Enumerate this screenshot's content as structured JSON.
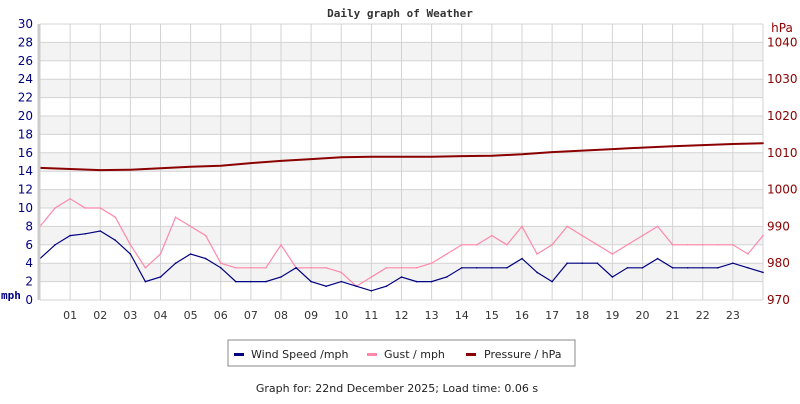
{
  "chart_data": {
    "type": "line",
    "title": "Daily graph of Weather",
    "ylabel_left": "mph",
    "ylabel_right": "hPa",
    "ylim_left": [
      0,
      30
    ],
    "ylim_right": [
      970,
      1045
    ],
    "yticks_left": [
      "0",
      "2",
      "4",
      "6",
      "8",
      "10",
      "12",
      "14",
      "16",
      "18",
      "20",
      "22",
      "24",
      "26",
      "28",
      "30"
    ],
    "yticks_right": [
      "970",
      "980",
      "990",
      "1000",
      "1010",
      "1020",
      "1030",
      "1040"
    ],
    "xticks": [
      "01",
      "02",
      "03",
      "04",
      "05",
      "06",
      "07",
      "08",
      "09",
      "10",
      "11",
      "12",
      "13",
      "14",
      "15",
      "16",
      "17",
      "18",
      "19",
      "20",
      "21",
      "22",
      "23"
    ],
    "xlim_hours": [
      0,
      24
    ],
    "grid": true,
    "legend_placement": "bottom",
    "series": [
      {
        "name": "Wind Speed /mph",
        "color": "#000080",
        "axis": "left",
        "x": [
          0,
          0.5,
          1,
          1.5,
          2,
          2.5,
          3,
          3.5,
          4,
          4.5,
          5,
          5.5,
          6,
          6.5,
          7,
          7.5,
          8,
          8.5,
          9,
          9.5,
          10,
          10.5,
          11,
          11.5,
          12,
          12.5,
          13,
          13.5,
          14,
          14.5,
          15,
          15.5,
          16,
          16.5,
          17,
          17.5,
          18,
          18.5,
          19,
          19.5,
          20,
          20.5,
          21,
          21.5,
          22,
          22.5,
          23,
          23.5,
          24
        ],
        "values": [
          4.5,
          6,
          7,
          7.2,
          7.5,
          6.5,
          5,
          2,
          2.5,
          4,
          5,
          4.5,
          3.5,
          2,
          2,
          2,
          2.5,
          3.5,
          2,
          1.5,
          2,
          1.5,
          1,
          1.5,
          2.5,
          2,
          2,
          2.5,
          3.5,
          3.5,
          3.5,
          3.5,
          4.5,
          3,
          2,
          4,
          4,
          4,
          2.5,
          3.5,
          3.5,
          4.5,
          3.5,
          3.5,
          3.5,
          3.5,
          4,
          3.5,
          3
        ]
      },
      {
        "name": "Gust / mph",
        "color": "#ff88aa",
        "axis": "left",
        "x": [
          0,
          0.5,
          1,
          1.5,
          2,
          2.5,
          3,
          3.5,
          4,
          4.5,
          5,
          5.5,
          6,
          6.5,
          7,
          7.5,
          8,
          8.5,
          9,
          9.5,
          10,
          10.5,
          11,
          11.5,
          12,
          12.5,
          13,
          13.5,
          14,
          14.5,
          15,
          15.5,
          16,
          16.5,
          17,
          17.5,
          18,
          18.5,
          19,
          19.5,
          20,
          20.5,
          21,
          21.5,
          22,
          22.5,
          23,
          23.5,
          24
        ],
        "values": [
          8,
          10,
          11,
          10,
          10,
          9,
          6,
          3.5,
          5,
          9,
          8,
          7,
          4,
          3.5,
          3.5,
          3.5,
          6,
          3.5,
          3.5,
          3.5,
          3,
          1.5,
          2.5,
          3.5,
          3.5,
          3.5,
          4,
          5,
          6,
          6,
          7,
          6,
          8,
          5,
          6,
          8,
          7,
          6,
          5,
          6,
          7,
          8,
          6,
          6,
          6,
          6,
          6,
          5,
          7
        ]
      },
      {
        "name": "Pressure / hPa",
        "color": "#8b0000",
        "axis": "right",
        "x": [
          0,
          1,
          2,
          3,
          4,
          5,
          6,
          7,
          8,
          9,
          10,
          11,
          12,
          13,
          14,
          15,
          16,
          17,
          18,
          19,
          20,
          21,
          22,
          23,
          24
        ],
        "values": [
          1005.9,
          1005.6,
          1005.3,
          1005.4,
          1005.8,
          1006.2,
          1006.5,
          1007.2,
          1007.8,
          1008.3,
          1008.8,
          1008.9,
          1008.9,
          1008.9,
          1009.1,
          1009.2,
          1009.6,
          1010.2,
          1010.6,
          1011.0,
          1011.4,
          1011.8,
          1012.1,
          1012.4,
          1012.6
        ]
      }
    ]
  },
  "footer": "Graph for: 22nd December 2025; Load time: 0.06 s",
  "colors": {
    "left_axis": "#000080",
    "right_axis": "#8b0000",
    "band": "#f3f3f3",
    "grid": "#d3d3d3"
  }
}
